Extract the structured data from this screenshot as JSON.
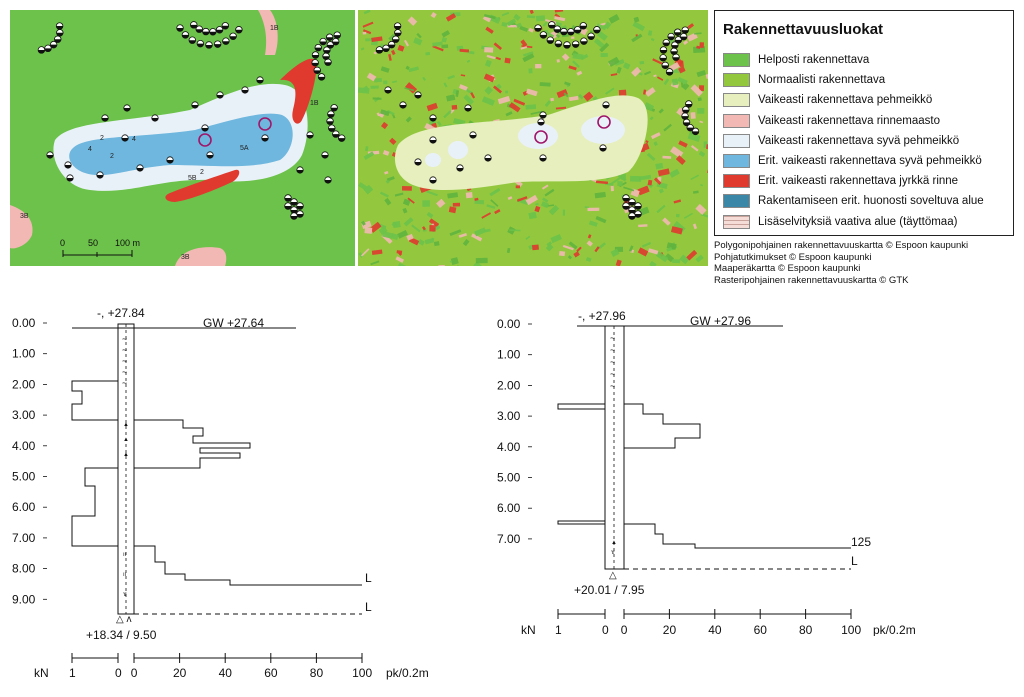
{
  "legend": {
    "title": "Rakennettavuusluokat",
    "items": [
      {
        "label": "Helposti rakennettava",
        "color": "#6cc24a",
        "hatch": false
      },
      {
        "label": "Normaalisti rakennettava",
        "color": "#93c83e",
        "hatch": false
      },
      {
        "label": "Vaikeasti rakennettava pehmeikkö",
        "color": "#e6efbd",
        "hatch": false
      },
      {
        "label": "Vaikeasti rakennettava rinnemaasto",
        "color": "#f2b8b3",
        "hatch": false
      },
      {
        "label": "Vaikeasti rakennettava syvä pehmeikkö",
        "color": "#e9f1f8",
        "hatch": false
      },
      {
        "label": "Erit. vaikeasti rakennettava syvä pehmeikkö",
        "color": "#6fb7de",
        "hatch": false
      },
      {
        "label": "Erit. vaikeasti rakennettava jyrkkä rinne",
        "color": "#e03a2f",
        "hatch": false
      },
      {
        "label": "Rakentamiseen erit. huonosti soveltuva alue",
        "color": "#3a87a8",
        "hatch": false
      },
      {
        "label": "Lisäselvityksiä vaativa alue (täyttömaa)",
        "color": "#f6dcd6",
        "hatch": true
      }
    ]
  },
  "credits": [
    "Polygonipohjainen rakennettavuuskartta © Espoon kaupunki",
    "Pohjatutkimukset © Espoon kaupunki",
    "Maaperäkartta © Espoon kaupunki",
    "Rasteripohjainen rakennettavuuskartta © GTK"
  ],
  "map1": {
    "scalebar": {
      "labels": [
        "0",
        "50",
        "100 m"
      ]
    },
    "zone_labels": [
      "2",
      "4",
      "4",
      "2",
      "5A",
      "5B",
      "2",
      "3B",
      "3B",
      "1B",
      "1B"
    ]
  },
  "profile_left": {
    "top_label": "-, +27.84",
    "gw_label": "GW +27.64",
    "bottom_label": "+18.34 / 9.50",
    "end_labels": [
      "L",
      "L"
    ],
    "depth_ticks": [
      "0.00",
      "1.00",
      "2.00",
      "3.00",
      "4.00",
      "5.00",
      "6.00",
      "7.00",
      "8.00",
      "9.00"
    ],
    "axis_unit_left": "kN",
    "axis_unit_right": "pk/0.2m",
    "axis_ticks_left": [
      "1",
      "0"
    ],
    "axis_ticks_right": [
      "0",
      "20",
      "40",
      "60",
      "80",
      "100"
    ]
  },
  "profile_right": {
    "top_label": "-, +27.96",
    "gw_label": "GW +27.96",
    "bottom_label": "+20.01 / 7.95",
    "end_labels": [
      "125",
      "L"
    ],
    "depth_ticks": [
      "0.00",
      "1.00",
      "2.00",
      "3.00",
      "4.00",
      "5.00",
      "6.00",
      "7.00"
    ],
    "axis_unit_left": "kN",
    "axis_unit_right": "pk/0.2m",
    "axis_ticks_left": [
      "1",
      "0"
    ],
    "axis_ticks_right": [
      "0",
      "20",
      "40",
      "60",
      "80",
      "100"
    ]
  }
}
